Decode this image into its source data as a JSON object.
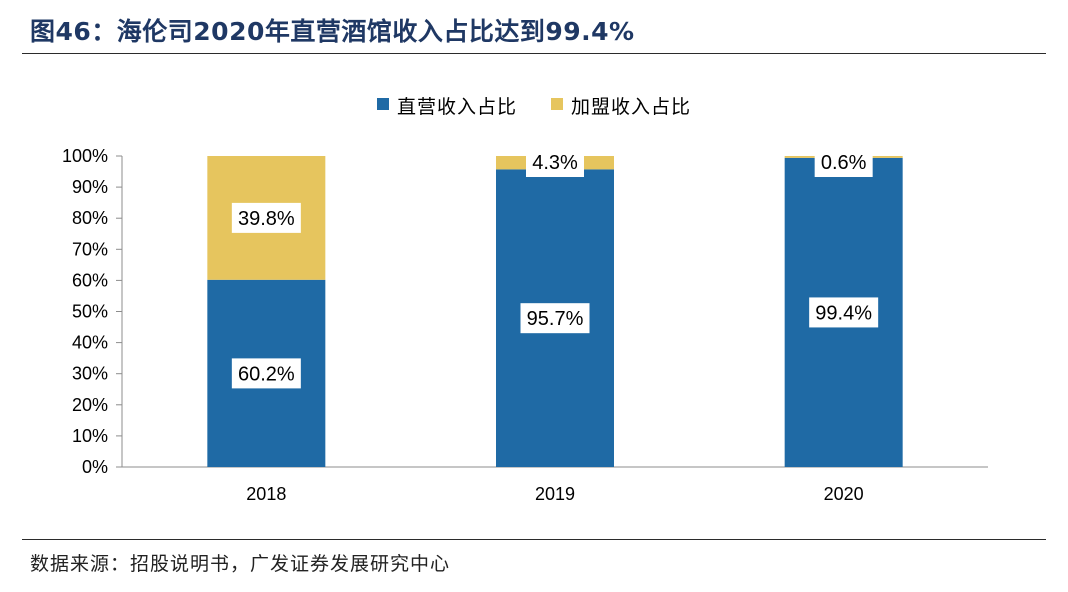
{
  "header": {
    "title": "图46：海伦司2020年直营酒馆收入占比达到99.4%"
  },
  "footer": {
    "source": "数据来源：招股说明书，广发证券发展研究中心"
  },
  "colors": {
    "direct": "#1f6aa5",
    "franchise": "#e6c55e",
    "title": "#1f3864"
  },
  "chart_data": {
    "type": "bar",
    "stacked": true,
    "categories": [
      "2018",
      "2019",
      "2020"
    ],
    "series": [
      {
        "name": "直营收入占比",
        "values": [
          60.2,
          95.7,
          99.4
        ],
        "labels": [
          "60.2%",
          "95.7%",
          "99.4%"
        ]
      },
      {
        "name": "加盟收入占比",
        "values": [
          39.8,
          4.3,
          0.6
        ],
        "labels": [
          "39.8%",
          "4.3%",
          "0.6%"
        ]
      }
    ],
    "ylim": [
      0,
      100
    ],
    "yticks": [
      "0%",
      "10%",
      "20%",
      "30%",
      "40%",
      "50%",
      "60%",
      "70%",
      "80%",
      "90%",
      "100%"
    ],
    "legend": "top-center",
    "grid": false
  }
}
